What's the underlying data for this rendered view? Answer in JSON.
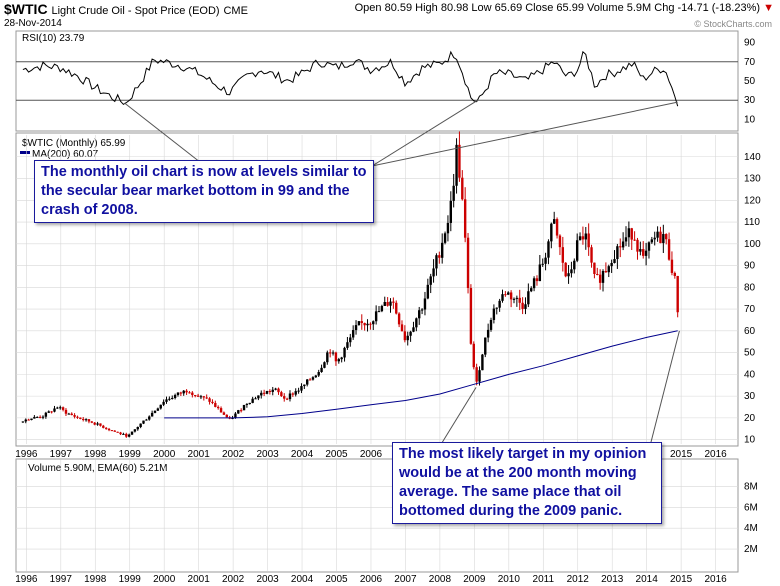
{
  "header": {
    "symbol": "$WTIC",
    "description": "Light Crude Oil - Spot Price (EOD)",
    "exchange": "CME",
    "date": "28-Nov-2014",
    "quote": "Open 80.59  High 80.98  Low 65.69  Close 65.99  Volume 5.9M  Chg -14.71 (-18.23%)",
    "down_arrow": "▼",
    "watermark": "© StockCharts.com"
  },
  "panels": {
    "rsi_label": "RSI(10) 23.79",
    "price_label": "$WTIC (Monthly) 65.99",
    "ma_label": "MA(200) 60.07",
    "volume_label": "Volume 5.90M, EMA(60) 5.21M"
  },
  "callouts": {
    "top": "The monthly oil chart is now at levels similar to the secular bear market bottom in 99 and the crash of 2008.",
    "bottom": "The most likely target in my opinion would be at the 200 month moving average. The same place that oil bottomed during the 2009 panic."
  },
  "colors": {
    "up": "#000000",
    "down": "#cc0000",
    "ma": "#00008b",
    "rsi": "#000000",
    "rsi_fill_over": "#2e7d32",
    "rsi_fill_under": "#b71c1c",
    "callout_text": "#1010a0",
    "grid": "#d8d8d8"
  },
  "chart_data": {
    "type": "candlestick",
    "period": "monthly",
    "x_ticks": [
      "1996",
      "1997",
      "1998",
      "1999",
      "2000",
      "2001",
      "2002",
      "2003",
      "2004",
      "2005",
      "2006",
      "2007",
      "2008",
      "2009",
      "2010",
      "2011",
      "2012",
      "2013",
      "2014",
      "2015",
      "2016"
    ],
    "rsi": {
      "name": "RSI(10)",
      "yticks": [
        10,
        30,
        50,
        70,
        90
      ],
      "ylim": [
        0,
        100
      ],
      "series": [
        [
          1995.9,
          62
        ],
        [
          1996.5,
          66
        ],
        [
          1997.0,
          64
        ],
        [
          1997.5,
          55
        ],
        [
          1998.0,
          43
        ],
        [
          1998.5,
          33
        ],
        [
          1998.9,
          27
        ],
        [
          1999.3,
          48
        ],
        [
          1999.7,
          72
        ],
        [
          2000.0,
          70
        ],
        [
          2000.5,
          66
        ],
        [
          2001.0,
          58
        ],
        [
          2001.5,
          46
        ],
        [
          2001.9,
          38
        ],
        [
          2002.4,
          55
        ],
        [
          2002.8,
          62
        ],
        [
          2003.2,
          56
        ],
        [
          2003.6,
          50
        ],
        [
          2004.0,
          58
        ],
        [
          2004.5,
          70
        ],
        [
          2005.0,
          64
        ],
        [
          2005.5,
          72
        ],
        [
          2006.0,
          62
        ],
        [
          2006.6,
          70
        ],
        [
          2007.0,
          48
        ],
        [
          2007.5,
          64
        ],
        [
          2008.0,
          68
        ],
        [
          2008.45,
          80
        ],
        [
          2008.7,
          55
        ],
        [
          2008.9,
          33
        ],
        [
          2009.1,
          27
        ],
        [
          2009.3,
          40
        ],
        [
          2009.6,
          58
        ],
        [
          2010.0,
          57
        ],
        [
          2010.5,
          50
        ],
        [
          2011.0,
          62
        ],
        [
          2011.3,
          70
        ],
        [
          2011.7,
          54
        ],
        [
          2012.0,
          62
        ],
        [
          2012.2,
          80
        ],
        [
          2012.5,
          45
        ],
        [
          2012.8,
          56
        ],
        [
          2013.0,
          58
        ],
        [
          2013.6,
          68
        ],
        [
          2013.9,
          52
        ],
        [
          2014.2,
          60
        ],
        [
          2014.5,
          64
        ],
        [
          2014.7,
          48
        ],
        [
          2014.9,
          23.79
        ]
      ]
    },
    "price": {
      "name": "$WTIC (Monthly)",
      "last": 65.99,
      "ylim": [
        8,
        150
      ],
      "yticks": [
        10,
        20,
        30,
        40,
        50,
        60,
        70,
        80,
        90,
        100,
        110,
        120,
        130,
        140
      ],
      "anchors": [
        [
          1995.9,
          19
        ],
        [
          1996.5,
          21
        ],
        [
          1996.9,
          25
        ],
        [
          1997.2,
          22
        ],
        [
          1997.5,
          20
        ],
        [
          1997.9,
          18
        ],
        [
          1998.5,
          14
        ],
        [
          1998.95,
          11.5
        ],
        [
          1999.3,
          17
        ],
        [
          1999.7,
          23
        ],
        [
          2000.0,
          28
        ],
        [
          2000.7,
          33
        ],
        [
          2000.95,
          30
        ],
        [
          2001.3,
          28
        ],
        [
          2001.9,
          19
        ],
        [
          2002.4,
          27
        ],
        [
          2002.8,
          31
        ],
        [
          2003.2,
          33
        ],
        [
          2003.5,
          29
        ],
        [
          2004.0,
          34
        ],
        [
          2004.5,
          42
        ],
        [
          2004.8,
          52
        ],
        [
          2005.0,
          45
        ],
        [
          2005.6,
          62
        ],
        [
          2006.0,
          65
        ],
        [
          2006.6,
          75
        ],
        [
          2007.0,
          56
        ],
        [
          2007.5,
          72
        ],
        [
          2007.9,
          92
        ],
        [
          2008.3,
          115
        ],
        [
          2008.5,
          145
        ],
        [
          2008.7,
          110
        ],
        [
          2008.9,
          55
        ],
        [
          2009.05,
          34
        ],
        [
          2009.2,
          48
        ],
        [
          2009.5,
          68
        ],
        [
          2009.9,
          78
        ],
        [
          2010.4,
          72
        ],
        [
          2010.8,
          84
        ],
        [
          2011.0,
          92
        ],
        [
          2011.3,
          110
        ],
        [
          2011.7,
          82
        ],
        [
          2012.0,
          100
        ],
        [
          2012.2,
          105
        ],
        [
          2012.5,
          82
        ],
        [
          2012.8,
          88
        ],
        [
          2013.0,
          95
        ],
        [
          2013.6,
          106
        ],
        [
          2013.9,
          92
        ],
        [
          2014.2,
          102
        ],
        [
          2014.5,
          104
        ],
        [
          2014.7,
          92
        ],
        [
          2014.85,
          80
        ],
        [
          2014.92,
          65.99
        ]
      ],
      "ma200": [
        [
          2000.0,
          20
        ],
        [
          2001.0,
          20
        ],
        [
          2002.0,
          20
        ],
        [
          2003.0,
          20.5
        ],
        [
          2004.0,
          22
        ],
        [
          2005.0,
          24
        ],
        [
          2006.0,
          26
        ],
        [
          2007.0,
          28
        ],
        [
          2008.0,
          31
        ],
        [
          2009.0,
          35.5
        ],
        [
          2010.0,
          40
        ],
        [
          2011.0,
          44
        ],
        [
          2012.0,
          48.5
        ],
        [
          2013.0,
          53
        ],
        [
          2014.0,
          57
        ],
        [
          2014.9,
          60.07
        ]
      ]
    },
    "volume": {
      "name": "Volume",
      "ema_name": "EMA(60)",
      "last": "5.90M",
      "ema_last": "5.21M",
      "yticks": [
        "2M",
        "4M",
        "6M",
        "8M"
      ],
      "ylim": [
        0,
        9
      ]
    }
  }
}
